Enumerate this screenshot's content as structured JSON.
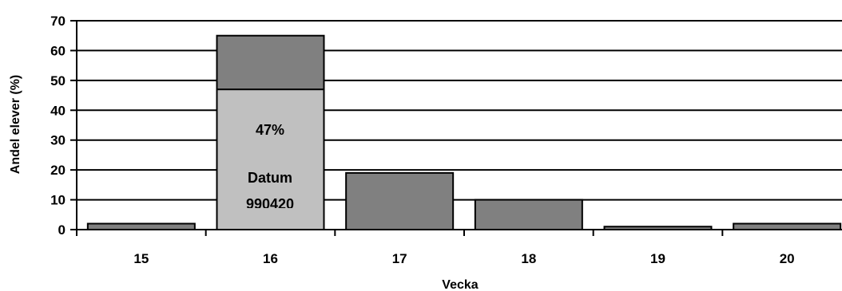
{
  "chart_data": {
    "type": "bar",
    "stacked": true,
    "categories": [
      "15",
      "16",
      "17",
      "18",
      "19",
      "20"
    ],
    "series": [
      {
        "values": [
          0,
          47,
          0,
          0,
          0,
          0
        ],
        "color": "#c0c0c0"
      },
      {
        "values": [
          2,
          18,
          19,
          10,
          1,
          2
        ],
        "color": "#808080"
      }
    ],
    "annotations": {
      "percent": "47%",
      "label_line1": "Datum",
      "label_line2": "990420"
    },
    "title": "",
    "xlabel": "Vecka",
    "ylabel": "Andel elever (%)",
    "ylim": [
      0,
      70
    ],
    "yticks": [
      "0",
      "10",
      "20",
      "30",
      "40",
      "50",
      "60",
      "70"
    ],
    "grid": true,
    "gridline_color": "#000000",
    "legend": "none"
  }
}
